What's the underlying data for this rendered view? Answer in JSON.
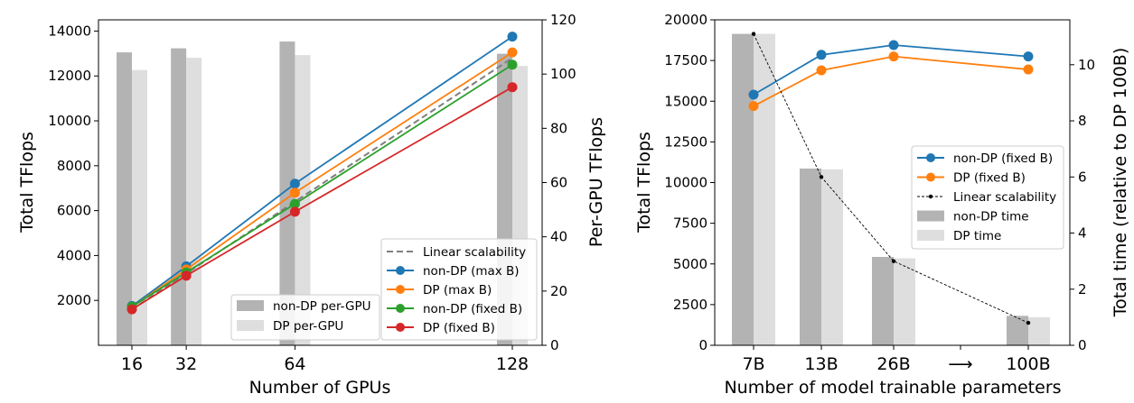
{
  "chart_data": [
    {
      "type": "line+bar",
      "xlabel": "Number of GPUs",
      "ylabel": "Total TFlops",
      "ylabel_right": "Per-GPU TFlops",
      "x": [
        16,
        32,
        64,
        128
      ],
      "x_ticks": [
        "16",
        "32",
        "64",
        "128"
      ],
      "ylim": [
        0,
        14500
      ],
      "y_ticks": [
        "2000",
        "4000",
        "6000",
        "8000",
        "10000",
        "12000",
        "14000"
      ],
      "ylim_right": [
        0,
        120
      ],
      "y_ticks_right": [
        "0",
        "20",
        "40",
        "60",
        "80",
        "100",
        "120"
      ],
      "line_series": [
        {
          "name": "Linear scalability",
          "color": "#7f7f7f",
          "style": "dashed",
          "values": [
            1600,
            3200,
            6400,
            12800
          ]
        },
        {
          "name": "non-DP (max B)",
          "color": "#1f77b4",
          "values": [
            1750,
            3520,
            7200,
            13750
          ]
        },
        {
          "name": "DP (max B)",
          "color": "#ff7f0e",
          "values": [
            1700,
            3380,
            6800,
            13050
          ]
        },
        {
          "name": "non-DP (fixed B)",
          "color": "#2ca02c",
          "values": [
            1720,
            3250,
            6300,
            12500
          ]
        },
        {
          "name": "DP (fixed B)",
          "color": "#d62728",
          "values": [
            1600,
            3100,
            5950,
            11500
          ]
        }
      ],
      "bar_series": [
        {
          "name": "non-DP per-GPU",
          "color": "#b3b3b3",
          "values": [
            108,
            109.5,
            112,
            107.5
          ]
        },
        {
          "name": "DP per-GPU",
          "color": "#dedede",
          "values": [
            101.5,
            106,
            107,
            103
          ]
        }
      ],
      "legend_lines_placement": "lower-right",
      "legend_bars_placement": "lower-center"
    },
    {
      "type": "line+bar",
      "xlabel": "Number of model trainable parameters",
      "ylabel": "Total TFlops",
      "ylabel_right": "Total time (relative to DP 100B)",
      "categories": [
        "7B",
        "13B",
        "26B",
        "⟶",
        "100B"
      ],
      "ylim": [
        0,
        20000
      ],
      "y_ticks": [
        "0",
        "2500",
        "5000",
        "7500",
        "10000",
        "12500",
        "15000",
        "17500",
        "20000"
      ],
      "ylim_right": [
        0,
        11.6
      ],
      "y_ticks_right": [
        "0",
        "2",
        "4",
        "6",
        "8",
        "10"
      ],
      "line_series": [
        {
          "name": "non-DP (fixed B)",
          "color": "#1f77b4",
          "values": [
            15400,
            17850,
            18450,
            null,
            17750
          ]
        },
        {
          "name": "DP (fixed B)",
          "color": "#ff7f0e",
          "values": [
            14700,
            16900,
            17750,
            null,
            16950
          ]
        },
        {
          "name": "Linear scalability",
          "color": "#000000",
          "style": "dotted",
          "values_right": [
            11.1,
            6.0,
            3.0,
            null,
            0.8
          ]
        }
      ],
      "bar_series": [
        {
          "name": "non-DP time",
          "color": "#b3b3b3",
          "values_right": [
            11.1,
            6.3,
            3.15,
            null,
            1.05
          ]
        },
        {
          "name": "DP time",
          "color": "#dedede",
          "values_right": [
            11.1,
            6.27,
            3.1,
            null,
            1.0
          ]
        }
      ],
      "legend_placement": "center-right"
    }
  ]
}
